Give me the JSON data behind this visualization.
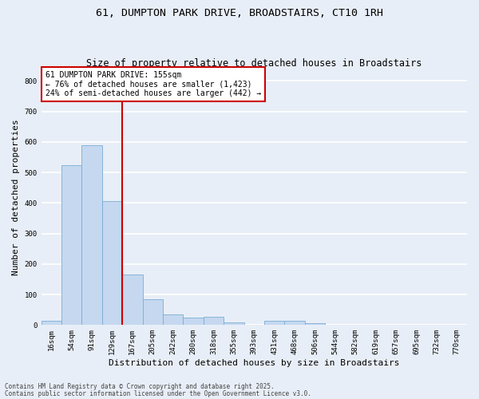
{
  "title": "61, DUMPTON PARK DRIVE, BROADSTAIRS, CT10 1RH",
  "subtitle": "Size of property relative to detached houses in Broadstairs",
  "xlabel": "Distribution of detached houses by size in Broadstairs",
  "ylabel": "Number of detached properties",
  "bar_labels": [
    "16sqm",
    "54sqm",
    "91sqm",
    "129sqm",
    "167sqm",
    "205sqm",
    "242sqm",
    "280sqm",
    "318sqm",
    "355sqm",
    "393sqm",
    "431sqm",
    "468sqm",
    "506sqm",
    "544sqm",
    "582sqm",
    "619sqm",
    "657sqm",
    "695sqm",
    "732sqm",
    "770sqm"
  ],
  "bar_values": [
    15,
    525,
    590,
    405,
    165,
    85,
    35,
    25,
    27,
    10,
    0,
    15,
    15,
    5,
    0,
    0,
    0,
    0,
    0,
    0,
    0
  ],
  "bar_color": "#c5d8f0",
  "bar_edge_color": "#7aadd4",
  "background_color": "#e8eef7",
  "grid_color": "#ffffff",
  "vline_color": "#cc0000",
  "annotation_text": "61 DUMPTON PARK DRIVE: 155sqm\n← 76% of detached houses are smaller (1,423)\n24% of semi-detached houses are larger (442) →",
  "annotation_box_color": "#ffffff",
  "annotation_box_edge": "#cc0000",
  "ylim": [
    0,
    840
  ],
  "yticks": [
    0,
    100,
    200,
    300,
    400,
    500,
    600,
    700,
    800
  ],
  "footer1": "Contains HM Land Registry data © Crown copyright and database right 2025.",
  "footer2": "Contains public sector information licensed under the Open Government Licence v3.0.",
  "title_fontsize": 9.5,
  "subtitle_fontsize": 8.5,
  "tick_fontsize": 6.5,
  "xlabel_fontsize": 8,
  "ylabel_fontsize": 8,
  "annotation_fontsize": 7,
  "footer_fontsize": 5.5
}
